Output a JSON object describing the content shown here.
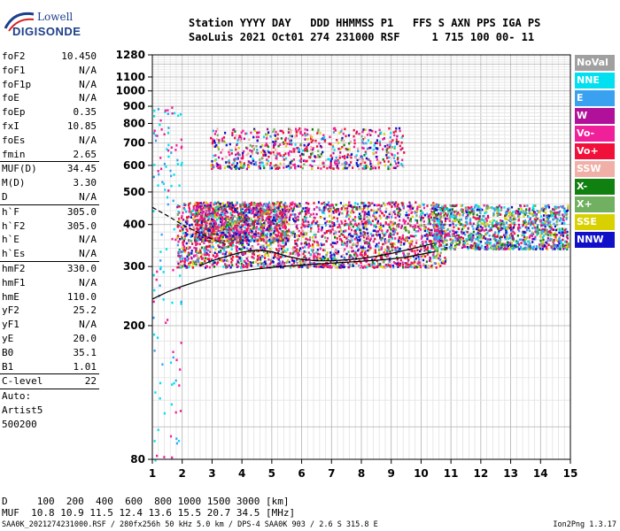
{
  "logo": {
    "line1": "Lowell",
    "line2": "DIGISONDE"
  },
  "header": {
    "line1": "Station YYYY DAY   DDD HHMMSS P1   FFS S AXN PPS IGA PS",
    "line2": "SaoLuis 2021 Oct01 274 231000 RSF     1 715 100 00- 11"
  },
  "params": [
    {
      "group": [
        {
          "name": "foF2",
          "value": "10.450"
        },
        {
          "name": "foF1",
          "value": "N/A"
        },
        {
          "name": "foF1p",
          "value": "N/A"
        },
        {
          "name": "foE",
          "value": "N/A"
        },
        {
          "name": "foEp",
          "value": "0.35"
        },
        {
          "name": "fxI",
          "value": "10.85"
        },
        {
          "name": "foEs",
          "value": "N/A"
        },
        {
          "name": "fmin",
          "value": "2.65"
        }
      ]
    },
    {
      "group": [
        {
          "name": "MUF(D)",
          "value": "34.45"
        },
        {
          "name": "M(D)",
          "value": "3.30"
        },
        {
          "name": "D",
          "value": "N/A"
        }
      ]
    },
    {
      "group": [
        {
          "name": "h`F",
          "value": "305.0"
        },
        {
          "name": "h`F2",
          "value": "305.0"
        },
        {
          "name": "h`E",
          "value": "N/A"
        },
        {
          "name": "h`Es",
          "value": "N/A"
        }
      ]
    },
    {
      "group": [
        {
          "name": "hmF2",
          "value": "330.0"
        },
        {
          "name": "hmF1",
          "value": "N/A"
        },
        {
          "name": "hmE",
          "value": "110.0"
        },
        {
          "name": "yF2",
          "value": "25.2"
        },
        {
          "name": "yF1",
          "value": "N/A"
        },
        {
          "name": "yE",
          "value": "20.0"
        },
        {
          "name": "B0",
          "value": "35.1"
        },
        {
          "name": "B1",
          "value": "1.01"
        }
      ]
    },
    {
      "group": [
        {
          "name": "C-level",
          "value": "22"
        }
      ]
    }
  ],
  "autoscale": {
    "line1": "Auto:",
    "line2": "Artist5",
    "line3": "500200"
  },
  "legend": [
    {
      "label": "NoVal",
      "color": "#a0a0a0"
    },
    {
      "label": "NNE",
      "color": "#00e0f0"
    },
    {
      "label": "E",
      "color": "#3aa0f0"
    },
    {
      "label": "W",
      "color": "#b0109a"
    },
    {
      "label": "Vo-",
      "color": "#f0209a"
    },
    {
      "label": "Vo+",
      "color": "#f0103a"
    },
    {
      "label": "SSW",
      "color": "#f0b0a8"
    },
    {
      "label": "X-",
      "color": "#108010"
    },
    {
      "label": "X+",
      "color": "#70b060"
    },
    {
      "label": "SSE",
      "color": "#d8d000"
    },
    {
      "label": "NNW",
      "color": "#1010c8"
    }
  ],
  "footer": {
    "d_row": "D     100  200  400  600  800 1000 1500 3000 [km]",
    "muf_row": "MUF  10.8 10.9 11.5 12.4 13.6 15.5 20.7 34.5 [MHz]",
    "file_info": "SAA0K_2021274231000.RSF / 280fx256h 50 kHz 5.0 km / DPS-4 SAA0K 903 / 2.6 S 315.8 E",
    "version": "Ion2Png 1.3.17"
  },
  "chart_data": {
    "type": "scatter",
    "title": "",
    "xlabel": "",
    "ylabel": "",
    "xlim": [
      1,
      15
    ],
    "ylim": [
      80,
      1280
    ],
    "y_scale": "log",
    "x_ticks": [
      1,
      2,
      3,
      4,
      5,
      6,
      7,
      8,
      9,
      10,
      11,
      12,
      13,
      14,
      15
    ],
    "y_ticks": [
      80,
      200,
      300,
      400,
      500,
      600,
      700,
      800,
      900,
      1000,
      1100,
      1280
    ],
    "grid": true,
    "legend_position": "right",
    "echo_regions": [
      {
        "x_range": [
          1.8,
          10.8
        ],
        "y_range": [
          300,
          470
        ],
        "note": "F-layer O/X traces"
      },
      {
        "x_range": [
          10.4,
          14.9
        ],
        "y_range": [
          340,
          460
        ],
        "note": "spread-F"
      },
      {
        "x_range": [
          2.9,
          9.4
        ],
        "y_range": [
          590,
          780
        ],
        "note": "second multiple"
      }
    ],
    "series": [
      {
        "name": "",
        "type": "line",
        "style": "solid",
        "x": [
          1,
          1.5,
          2,
          2.5,
          3,
          3.5,
          4,
          4.5,
          5,
          5.5,
          6,
          6.5,
          7,
          7.5,
          8,
          8.5,
          9,
          9.5,
          10,
          10.45
        ],
        "y": [
          240,
          252,
          262,
          271,
          279,
          286,
          291,
          295,
          298,
          301,
          303,
          305,
          307,
          309,
          311,
          313,
          316,
          320,
          326,
          332
        ]
      },
      {
        "name": "",
        "type": "line",
        "style": "solid",
        "x": [
          2.6,
          3,
          3.5,
          4,
          4.5,
          5,
          5.5,
          6,
          6.5,
          7,
          7.5,
          8,
          8.5,
          9,
          9.5,
          10,
          10.45
        ],
        "y": [
          302,
          312,
          322,
          331,
          336,
          332,
          322,
          315,
          312,
          312,
          314,
          317,
          322,
          328,
          336,
          344,
          352
        ]
      },
      {
        "name": "",
        "type": "line",
        "style": "dashed",
        "x": [
          1,
          1.5,
          2,
          2.5,
          3,
          3.5
        ],
        "y": [
          450,
          425,
          400,
          380,
          362,
          348
        ]
      }
    ]
  }
}
